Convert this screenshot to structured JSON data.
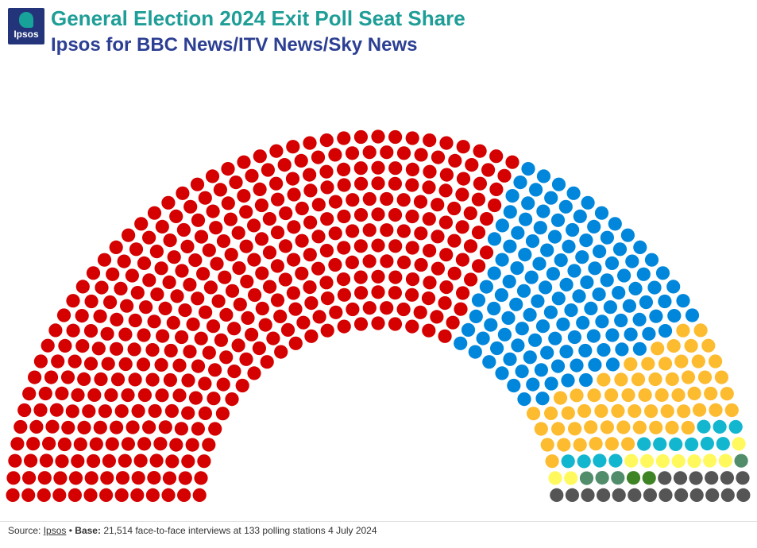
{
  "header": {
    "logo_text": "Ipsos",
    "title": "General Election 2024 Exit Poll Seat Share",
    "subtitle": "Ipsos for BBC News/ITV News/Sky News"
  },
  "footer": {
    "source_label": "Source:",
    "source_link": "Ipsos",
    "separator": "•",
    "base_label": "Base:",
    "base_text": "21,514 face-to-face interviews at 133 polling stations 4 July 2024"
  },
  "chart_data": {
    "type": "parliament",
    "title": "General Election 2024 Exit Poll Seat Share",
    "subtitle": "Ipsos for BBC News/ITV News/Sky News",
    "total_seats": 650,
    "series": [
      {
        "values": [
          410
        ],
        "color": "#d50000"
      },
      {
        "values": [
          131
        ],
        "color": "#0087dc"
      },
      {
        "values": [
          61
        ],
        "color": "#fdbb30"
      },
      {
        "values": [
          13
        ],
        "color": "#12b6cf"
      },
      {
        "values": [
          10
        ],
        "color": "#fff95d"
      },
      {
        "values": [
          4
        ],
        "color": "#528d6b"
      },
      {
        "values": [
          2
        ],
        "color": "#3e8424"
      },
      {
        "values": [
          19
        ],
        "color": "#555555"
      }
    ]
  }
}
